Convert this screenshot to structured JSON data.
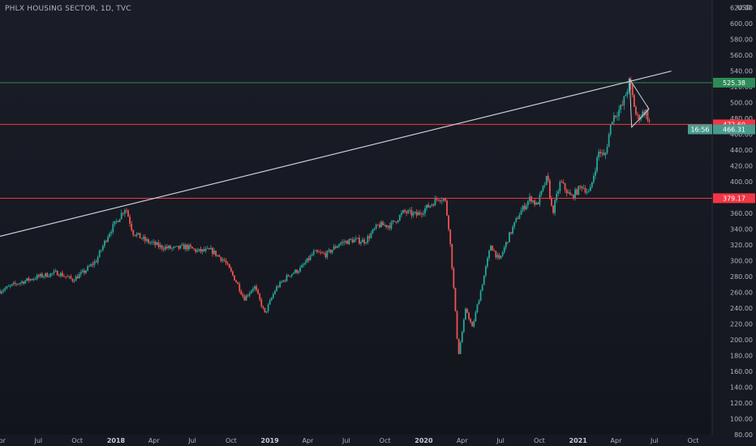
{
  "chart_data": {
    "type": "candlestick",
    "title": "PHLX HOUSING SECTOR, 1D, TVC",
    "currency": "USD",
    "colors": {
      "background": "#161922",
      "up": "#26a69a",
      "down": "#ef5350",
      "trendline": "#c8ccd6",
      "support_resistance": "#f23645",
      "upper_line": "#2e8b57",
      "axis_text": "#b2b5be",
      "grid": "#242733"
    },
    "y_axis": {
      "min": 80,
      "max": 630,
      "ticks": [
        80,
        100,
        120,
        140,
        160,
        180,
        200,
        220,
        240,
        260,
        280,
        300,
        320,
        340,
        360,
        380,
        400,
        420,
        440,
        460,
        480,
        500,
        520,
        540,
        560,
        580,
        600,
        620
      ],
      "tick_labels": [
        "80.00",
        "100.00",
        "120.00",
        "140.00",
        "160.00",
        "180.00",
        "200.00",
        "220.00",
        "240.00",
        "260.00",
        "280.00",
        "300.00",
        "320.00",
        "340.00",
        "360.00",
        "380.00",
        "400.00",
        "420.00",
        "440.00",
        "460.00",
        "480.00",
        "500.00",
        "520.00",
        "540.00",
        "560.00",
        "580.00",
        "600.00",
        "620.00"
      ]
    },
    "x_axis": {
      "range": [
        "2017-04-01",
        "2021-11-15"
      ],
      "ticks": [
        {
          "date": "2017-04-01",
          "label": "Apr",
          "year": false
        },
        {
          "date": "2017-07-01",
          "label": "Jul",
          "year": false
        },
        {
          "date": "2017-10-01",
          "label": "Oct",
          "year": false
        },
        {
          "date": "2018-01-01",
          "label": "2018",
          "year": true
        },
        {
          "date": "2018-04-01",
          "label": "Apr",
          "year": false
        },
        {
          "date": "2018-07-01",
          "label": "Jul",
          "year": false
        },
        {
          "date": "2018-10-01",
          "label": "Oct",
          "year": false
        },
        {
          "date": "2019-01-01",
          "label": "2019",
          "year": true
        },
        {
          "date": "2019-04-01",
          "label": "Apr",
          "year": false
        },
        {
          "date": "2019-07-01",
          "label": "Jul",
          "year": false
        },
        {
          "date": "2019-10-01",
          "label": "Oct",
          "year": false
        },
        {
          "date": "2020-01-01",
          "label": "2020",
          "year": true
        },
        {
          "date": "2020-04-01",
          "label": "Apr",
          "year": false
        },
        {
          "date": "2020-07-01",
          "label": "Jul",
          "year": false
        },
        {
          "date": "2020-10-01",
          "label": "Oct",
          "year": false
        },
        {
          "date": "2021-01-01",
          "label": "2021",
          "year": true
        },
        {
          "date": "2021-04-01",
          "label": "Apr",
          "year": false
        },
        {
          "date": "2021-07-01",
          "label": "Jul",
          "year": false
        },
        {
          "date": "2021-10-01",
          "label": "Oct",
          "year": false
        }
      ]
    },
    "price_path": [
      [
        "2017-04-01",
        262
      ],
      [
        "2017-05-15",
        272
      ],
      [
        "2017-07-01",
        280
      ],
      [
        "2017-08-15",
        285
      ],
      [
        "2017-09-20",
        276
      ],
      [
        "2017-10-15",
        285
      ],
      [
        "2017-11-15",
        300
      ],
      [
        "2017-12-15",
        335
      ],
      [
        "2018-01-05",
        352
      ],
      [
        "2018-01-24",
        368
      ],
      [
        "2018-02-10",
        336
      ],
      [
        "2018-03-10",
        326
      ],
      [
        "2018-04-15",
        318
      ],
      [
        "2018-05-20",
        315
      ],
      [
        "2018-06-15",
        318
      ],
      [
        "2018-07-15",
        312
      ],
      [
        "2018-08-15",
        313
      ],
      [
        "2018-09-15",
        300
      ],
      [
        "2018-10-15",
        272
      ],
      [
        "2018-11-01",
        252
      ],
      [
        "2018-11-25",
        268
      ],
      [
        "2018-12-20",
        233
      ],
      [
        "2019-01-15",
        265
      ],
      [
        "2019-02-15",
        282
      ],
      [
        "2019-03-15",
        290
      ],
      [
        "2019-04-15",
        310
      ],
      [
        "2019-05-15",
        308
      ],
      [
        "2019-06-15",
        322
      ],
      [
        "2019-07-15",
        326
      ],
      [
        "2019-08-15",
        325
      ],
      [
        "2019-09-15",
        345
      ],
      [
        "2019-10-15",
        345
      ],
      [
        "2019-11-15",
        362
      ],
      [
        "2019-12-15",
        358
      ],
      [
        "2020-01-15",
        370
      ],
      [
        "2020-02-05",
        380
      ],
      [
        "2020-02-20",
        378
      ],
      [
        "2020-03-01",
        340
      ],
      [
        "2020-03-10",
        280
      ],
      [
        "2020-03-23",
        180
      ],
      [
        "2020-04-10",
        240
      ],
      [
        "2020-04-25",
        215
      ],
      [
        "2020-05-15",
        262
      ],
      [
        "2020-06-08",
        320
      ],
      [
        "2020-06-28",
        300
      ],
      [
        "2020-07-20",
        330
      ],
      [
        "2020-08-15",
        360
      ],
      [
        "2020-09-10",
        380
      ],
      [
        "2020-09-25",
        370
      ],
      [
        "2020-10-20",
        406
      ],
      [
        "2020-11-01",
        360
      ],
      [
        "2020-11-20",
        400
      ],
      [
        "2020-12-15",
        380
      ],
      [
        "2021-01-10",
        395
      ],
      [
        "2021-01-28",
        385
      ],
      [
        "2021-02-20",
        440
      ],
      [
        "2021-03-05",
        430
      ],
      [
        "2021-03-22",
        480
      ],
      [
        "2021-04-15",
        495
      ],
      [
        "2021-05-03",
        527
      ],
      [
        "2021-05-20",
        480
      ],
      [
        "2021-06-10",
        490
      ],
      [
        "2021-06-22",
        470
      ]
    ],
    "horizontal_lines": [
      {
        "value": 525.38,
        "label": "525.38",
        "color": "#2e8b57"
      },
      {
        "value": 472.6,
        "label": "472.60",
        "color": "#f23645"
      },
      {
        "value": 379.17,
        "label": "379.17",
        "color": "#f23645"
      }
    ],
    "current_price": {
      "value": 466.31,
      "label": "466.31",
      "countdown": "16:56"
    },
    "trendline": {
      "start": [
        "2017-04-01",
        331
      ],
      "end": [
        "2021-08-10",
        540
      ]
    },
    "triangle": [
      [
        "2021-05-03",
        530
      ],
      [
        "2021-06-18",
        492
      ],
      [
        "2021-05-08",
        469
      ]
    ]
  }
}
